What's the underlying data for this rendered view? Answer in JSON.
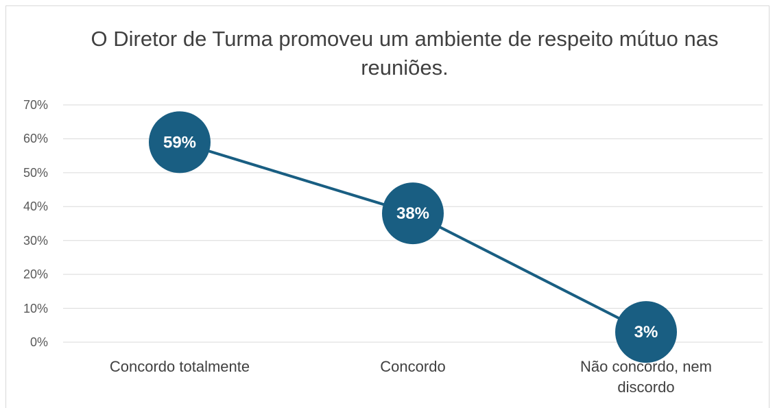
{
  "chart_data": {
    "type": "line",
    "title": "O Diretor de Turma promoveu um ambiente de respeito mútuo nas reuniões.",
    "categories": [
      "Concordo totalmente",
      "Concordo",
      "Não concordo, nem discordo"
    ],
    "values": [
      59,
      38,
      3
    ],
    "value_labels": [
      "59%",
      "38%",
      "3%"
    ],
    "color": "#195e82",
    "ylim": [
      0,
      70
    ],
    "yticks": [
      {
        "value": 0,
        "label": "0%"
      },
      {
        "value": 10,
        "label": "10%"
      },
      {
        "value": 20,
        "label": "20%"
      },
      {
        "value": 30,
        "label": "30%"
      },
      {
        "value": 40,
        "label": "40%"
      },
      {
        "value": 50,
        "label": "50%"
      },
      {
        "value": 60,
        "label": "60%"
      },
      {
        "value": 70,
        "label": "70%"
      }
    ],
    "grid": true
  }
}
